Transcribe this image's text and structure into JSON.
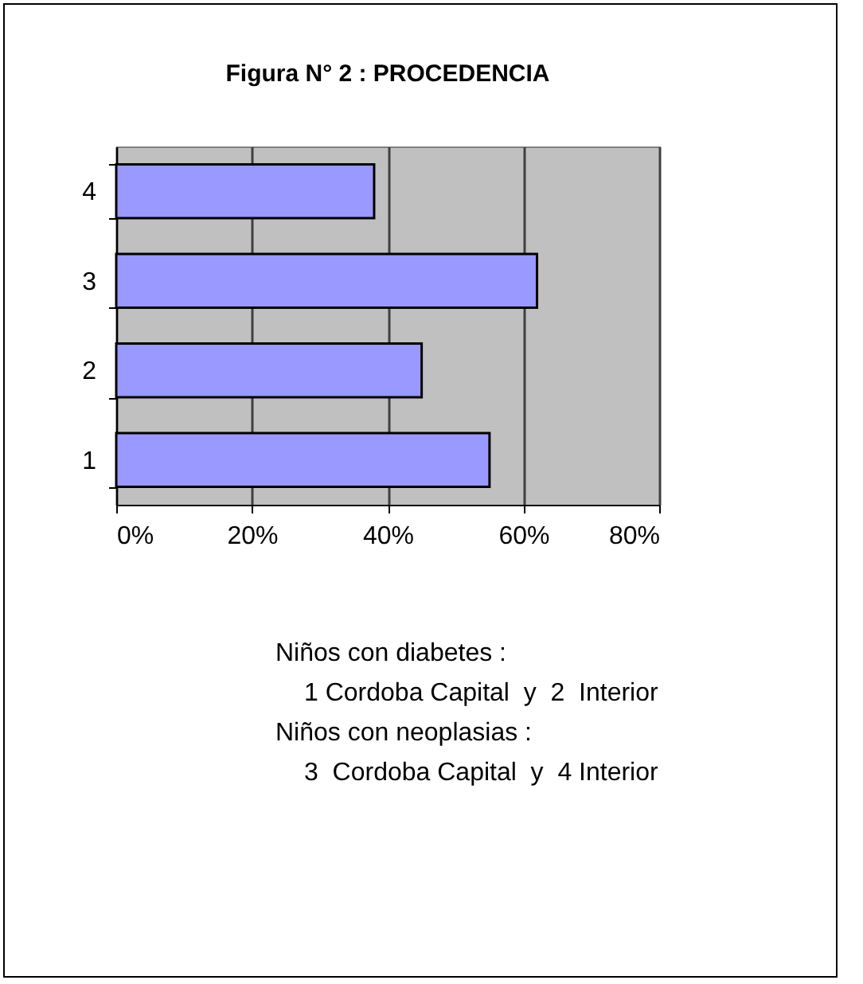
{
  "chart_data": {
    "type": "bar",
    "orientation": "horizontal",
    "title": "Figura N° 2  : PROCEDENCIA",
    "categories": [
      "4",
      "3",
      "2",
      "1"
    ],
    "values": [
      38,
      62,
      45,
      55
    ],
    "color": "#9999ff",
    "xlim": [
      0,
      80
    ],
    "xticks": [
      {
        "value": 0,
        "label": "0%"
      },
      {
        "value": 20,
        "label": "20%"
      },
      {
        "value": 40,
        "label": "40%"
      },
      {
        "value": 60,
        "label": "60%"
      },
      {
        "value": 80,
        "label": "80%"
      }
    ],
    "grid": "x",
    "annotations": [
      "Niños con diabetes :",
      "1 Cordoba Capital  y  2  Interior",
      "Niños con neoplasias :",
      "3  Cordoba Capital  y  4 Interior"
    ]
  }
}
